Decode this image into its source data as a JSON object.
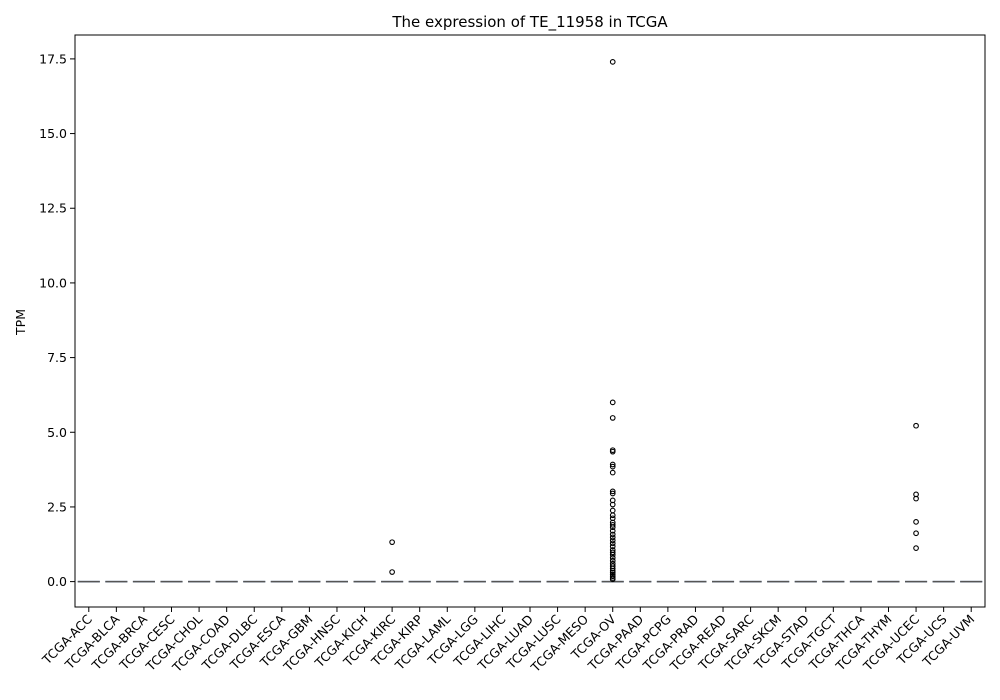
{
  "chart_data": {
    "type": "box",
    "title": "The expression of TE_11958 in TCGA",
    "xlabel": "",
    "ylabel": "TPM",
    "ylim": [
      -0.85,
      18.3
    ],
    "yticks": [
      0.0,
      2.5,
      5.0,
      7.5,
      10.0,
      12.5,
      15.0,
      17.5
    ],
    "ytick_labels": [
      "0.0",
      "2.5",
      "5.0",
      "7.5",
      "10.0",
      "12.5",
      "15.0",
      "17.5"
    ],
    "grid": false,
    "legend": "none",
    "box_color": "#4c72b0",
    "median_color": "#555555",
    "categories": [
      "TCGA-ACC",
      "TCGA-BLCA",
      "TCGA-BRCA",
      "TCGA-CESC",
      "TCGA-CHOL",
      "TCGA-COAD",
      "TCGA-DLBC",
      "TCGA-ESCA",
      "TCGA-GBM",
      "TCGA-HNSC",
      "TCGA-KICH",
      "TCGA-KIRC",
      "TCGA-KIRP",
      "TCGA-LAML",
      "TCGA-LGG",
      "TCGA-LIHC",
      "TCGA-LUAD",
      "TCGA-LUSC",
      "TCGA-MESO",
      "TCGA-OV",
      "TCGA-PAAD",
      "TCGA-PCPG",
      "TCGA-PRAD",
      "TCGA-READ",
      "TCGA-SARC",
      "TCGA-SKCM",
      "TCGA-STAD",
      "TCGA-TGCT",
      "TCGA-THCA",
      "TCGA-THYM",
      "TCGA-UCEC",
      "TCGA-UCS",
      "TCGA-UVM"
    ],
    "medians": [
      0,
      0,
      0,
      0,
      0,
      0,
      0,
      0,
      0,
      0,
      0,
      0,
      0,
      0,
      0,
      0,
      0,
      0,
      0,
      0,
      0,
      0,
      0,
      0,
      0,
      0,
      0,
      0,
      0,
      0,
      0,
      0,
      0
    ],
    "outliers": {
      "TCGA-KIRC": [
        1.32,
        0.32
      ],
      "TCGA-OV": [
        17.4,
        6.0,
        5.48,
        4.4,
        4.35,
        3.92,
        3.85,
        3.65,
        3.02,
        2.95,
        2.72,
        2.58,
        2.38,
        2.22,
        2.12,
        1.98,
        1.9,
        1.82,
        1.7,
        1.58,
        1.48,
        1.38,
        1.28,
        1.18,
        1.06,
        0.98,
        0.9,
        0.8,
        0.7,
        0.6,
        0.52,
        0.44,
        0.36,
        0.3,
        0.24,
        0.18,
        0.12,
        0.08
      ],
      "TCGA-UCEC": [
        5.22,
        2.92,
        2.78,
        2.0,
        1.62,
        1.12
      ]
    }
  }
}
